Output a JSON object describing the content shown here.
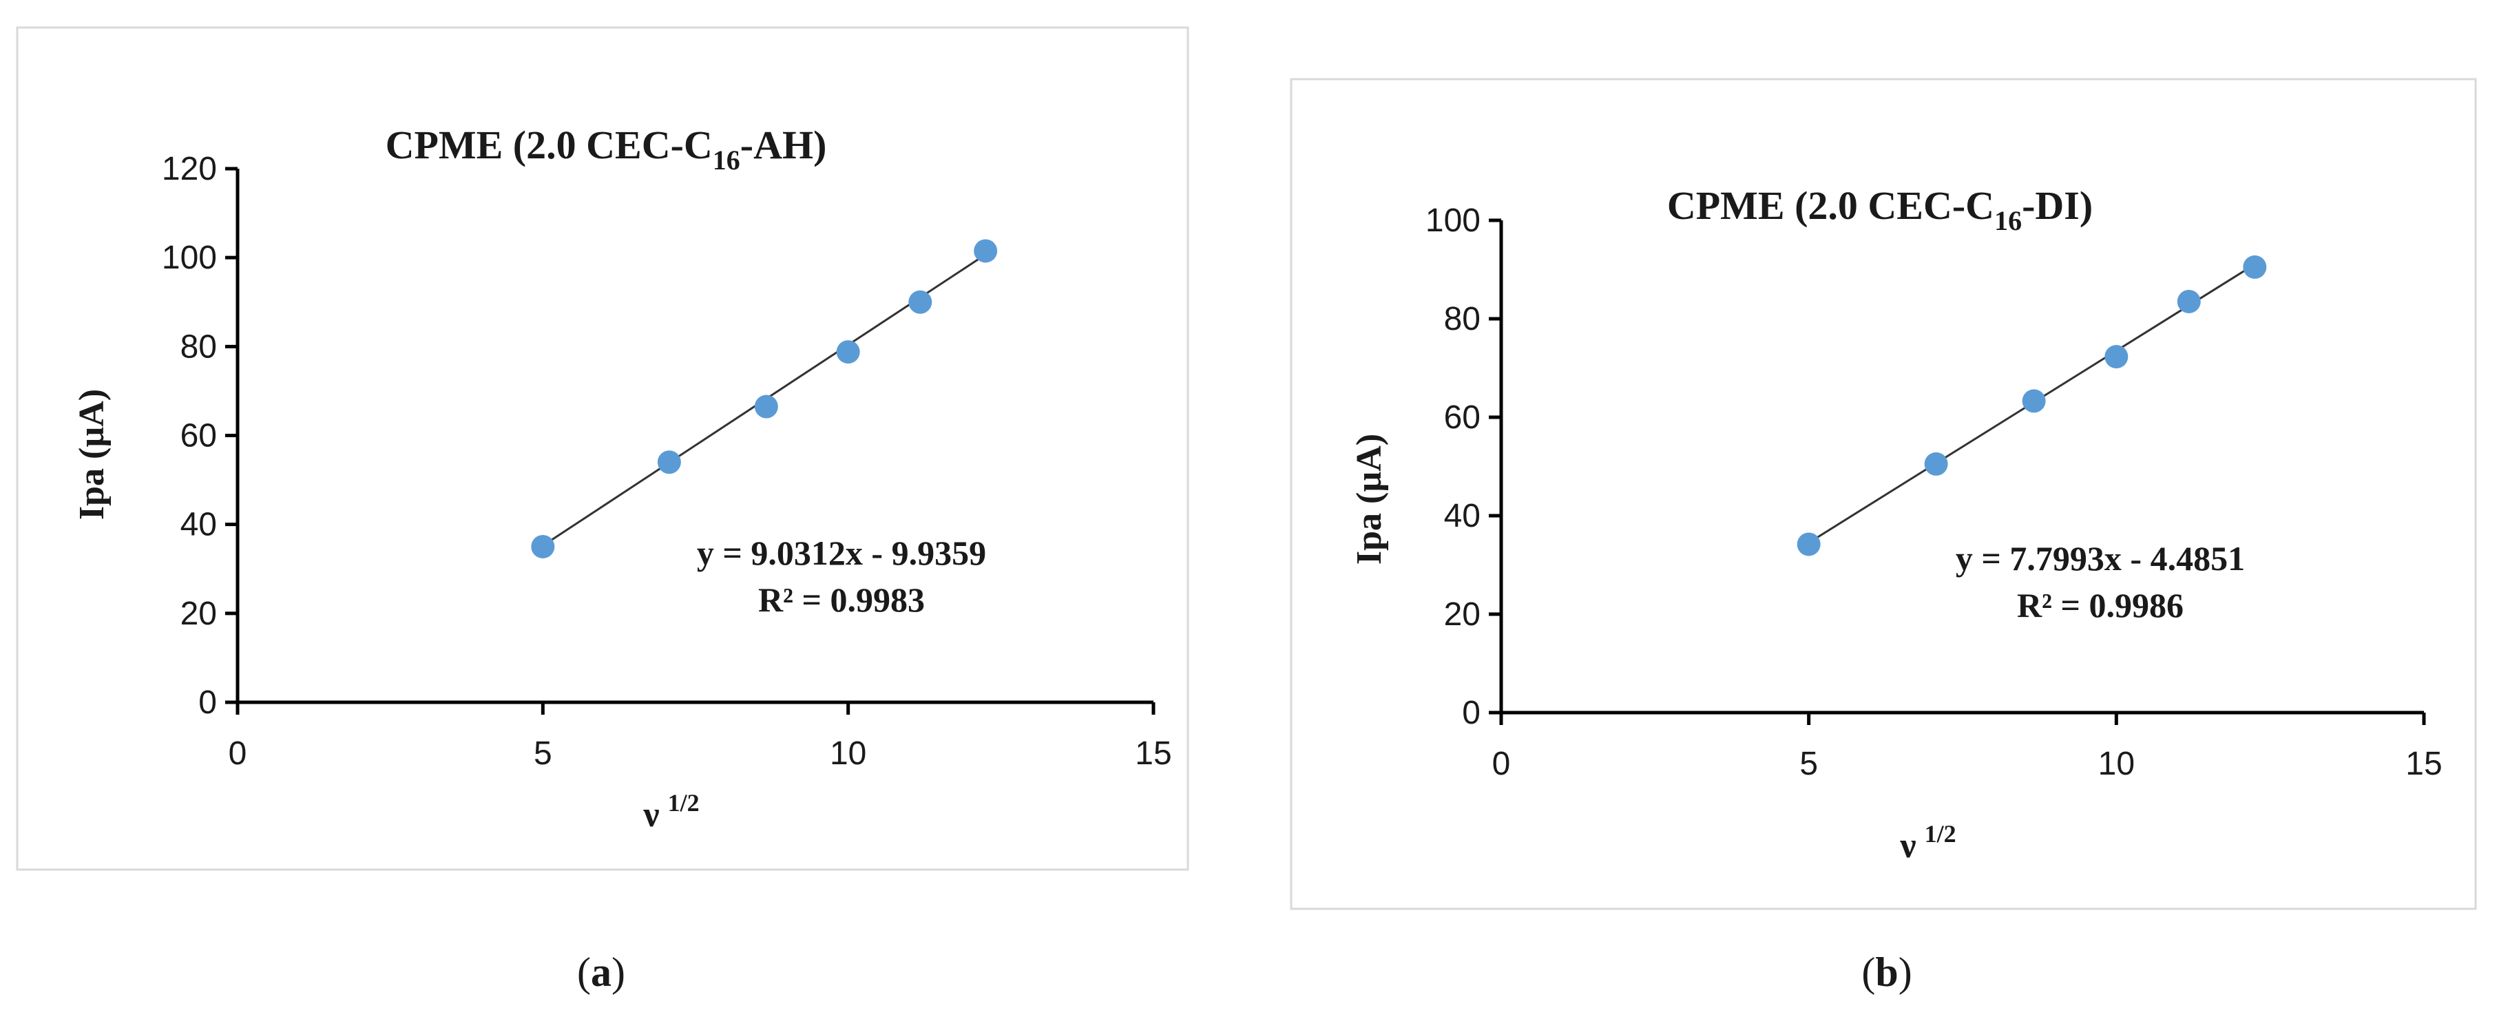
{
  "chart_data": [
    {
      "type": "scatter",
      "title": "CPME (2.0 CEC-C",
      "title_sub": "16",
      "title_tail": "-AH)",
      "xlabel": "ν",
      "xlabel_sup": "1/2",
      "ylabel": "Ipa (µA)",
      "xlim": [
        0,
        15
      ],
      "ylim": [
        0,
        120
      ],
      "xticks": [
        "0",
        "5",
        "10",
        "15"
      ],
      "yticks": [
        "0",
        "20",
        "40",
        "60",
        "80",
        "100",
        "120"
      ],
      "grid": false,
      "x": [
        5.0,
        7.07,
        8.66,
        10.0,
        11.18,
        12.25
      ],
      "y": [
        35.0,
        54.0,
        66.5,
        78.8,
        90.0,
        101.5
      ],
      "trendline": {
        "slope": 9.0312,
        "intercept": -9.9359
      },
      "equation": "y = 9.0312x - 9.9359",
      "r2": "R² = 0.9983",
      "point_color": "#5b9bd5",
      "caption_open": "(",
      "caption_letter": "a",
      "caption_close": ")"
    },
    {
      "type": "scatter",
      "title": "CPME (2.0 CEC-C",
      "title_sub": "16",
      "title_tail": "-DI)",
      "xlabel": "ν",
      "xlabel_sup": "1/2",
      "ylabel": "Ipa (µA)",
      "xlim": [
        0,
        15
      ],
      "ylim": [
        0,
        100
      ],
      "xticks": [
        "0",
        "5",
        "10",
        "15"
      ],
      "yticks": [
        "0",
        "20",
        "40",
        "60",
        "80",
        "100"
      ],
      "grid": false,
      "x": [
        5.0,
        7.07,
        8.66,
        10.0,
        11.18,
        12.25
      ],
      "y": [
        34.2,
        50.5,
        63.3,
        72.3,
        83.5,
        90.5
      ],
      "trendline": {
        "slope": 7.7993,
        "intercept": -4.4851
      },
      "equation": "y = 7.7993x - 4.4851",
      "r2": "R² = 0.9986",
      "point_color": "#5b9bd5",
      "caption_open": "(",
      "caption_letter": "b",
      "caption_close": ")"
    }
  ]
}
